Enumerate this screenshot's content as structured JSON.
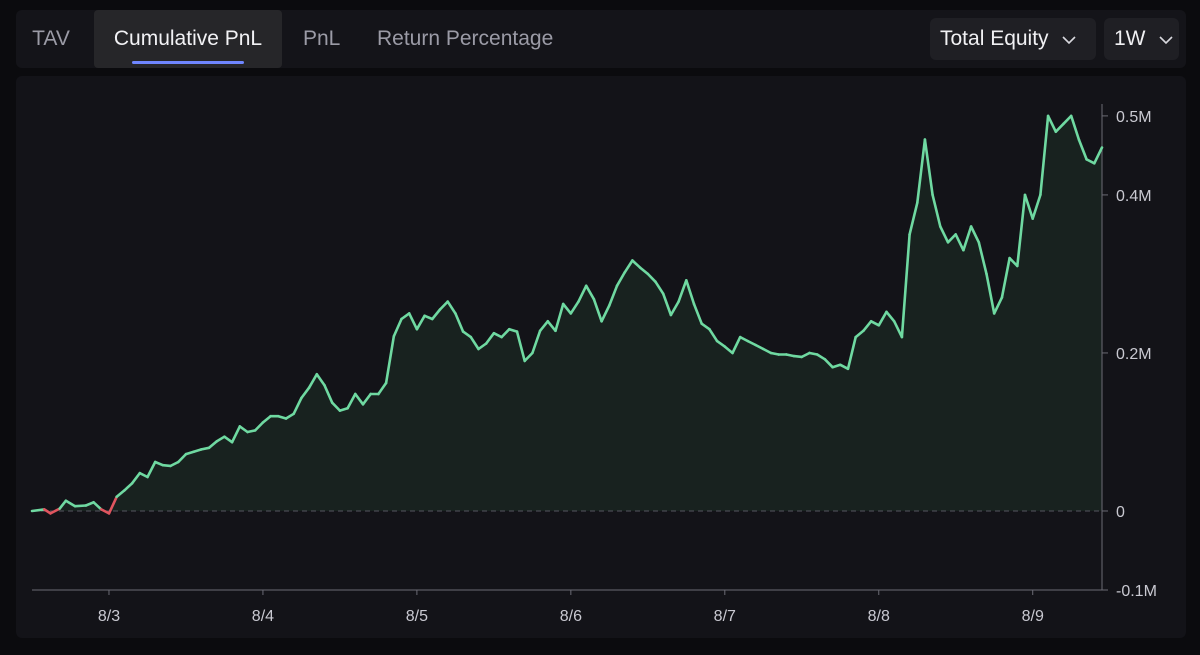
{
  "tabs": [
    {
      "label": "TAV",
      "active": false
    },
    {
      "label": "Cumulative PnL",
      "active": true
    },
    {
      "label": "PnL",
      "active": false
    },
    {
      "label": "Return Percentage",
      "active": false
    }
  ],
  "dropdowns": {
    "metric": {
      "value": "Total Equity",
      "icon": "chevron-down-icon"
    },
    "range": {
      "value": "1W",
      "icon": "chevron-down-icon"
    }
  },
  "colors": {
    "positive_line": "#6fd9a1",
    "negative_line": "#e0555f",
    "accent": "#6f86ff"
  },
  "chart_data": {
    "type": "area",
    "title": "",
    "xlabel": "",
    "ylabel": "",
    "ylim": [
      -0.1,
      0.51
    ],
    "y_unit": "M",
    "y_ticks": [
      {
        "value": 0.5,
        "label": "0.5M"
      },
      {
        "value": 0.4,
        "label": "0.4M"
      },
      {
        "value": 0.2,
        "label": "0.2M"
      },
      {
        "value": 0,
        "label": "0"
      },
      {
        "value": -0.1,
        "label": "-0.1M"
      }
    ],
    "xlim": [
      2.5,
      9.45
    ],
    "x_ticks": [
      {
        "value": 3,
        "label": "8/3"
      },
      {
        "value": 4,
        "label": "8/4"
      },
      {
        "value": 5,
        "label": "8/5"
      },
      {
        "value": 6,
        "label": "8/6"
      },
      {
        "value": 7,
        "label": "8/7"
      },
      {
        "value": 8,
        "label": "8/8"
      },
      {
        "value": 9,
        "label": "8/9"
      }
    ],
    "zero_line": "dashed",
    "grid": false,
    "legend": "none",
    "series": [
      {
        "x": [
          2.5,
          2.58,
          2.62,
          2.68,
          2.72,
          2.78,
          2.85,
          2.9,
          2.95,
          3.0,
          3.05,
          3.1,
          3.15,
          3.2,
          3.25,
          3.3,
          3.35,
          3.4,
          3.45,
          3.5,
          3.55,
          3.6,
          3.65,
          3.7,
          3.75,
          3.8,
          3.85,
          3.9,
          3.95,
          4.0,
          4.05,
          4.1,
          4.15,
          4.2,
          4.25,
          4.3,
          4.35,
          4.4,
          4.45,
          4.5,
          4.55,
          4.6,
          4.65,
          4.7,
          4.75,
          4.8,
          4.85,
          4.9,
          4.95,
          5.0,
          5.05,
          5.1,
          5.15,
          5.2,
          5.25,
          5.3,
          5.35,
          5.4,
          5.45,
          5.5,
          5.55,
          5.6,
          5.65,
          5.7,
          5.75,
          5.8,
          5.85,
          5.9,
          5.95,
          6.0,
          6.05,
          6.1,
          6.15,
          6.2,
          6.25,
          6.3,
          6.35,
          6.4,
          6.45,
          6.5,
          6.55,
          6.6,
          6.65,
          6.7,
          6.75,
          6.8,
          6.85,
          6.9,
          6.95,
          7.0,
          7.05,
          7.1,
          7.15,
          7.2,
          7.25,
          7.3,
          7.35,
          7.4,
          7.45,
          7.5,
          7.55,
          7.6,
          7.65,
          7.7,
          7.75,
          7.8,
          7.85,
          7.9,
          7.95,
          8.0,
          8.05,
          8.1,
          8.15,
          8.2,
          8.25,
          8.3,
          8.35,
          8.4,
          8.45,
          8.5,
          8.55,
          8.6,
          8.65,
          8.7,
          8.75,
          8.8,
          8.85,
          8.9,
          8.95,
          9.0,
          9.05,
          9.1,
          9.15,
          9.2,
          9.25,
          9.3,
          9.35,
          9.4,
          9.45
        ],
        "values": [
          0.0,
          0.002,
          -0.003,
          0.003,
          0.013,
          0.006,
          0.007,
          0.011,
          0.002,
          -0.003,
          0.018,
          0.026,
          0.035,
          0.048,
          0.043,
          0.062,
          0.058,
          0.057,
          0.062,
          0.072,
          0.075,
          0.078,
          0.08,
          0.088,
          0.094,
          0.087,
          0.107,
          0.1,
          0.102,
          0.112,
          0.12,
          0.12,
          0.117,
          0.123,
          0.143,
          0.156,
          0.173,
          0.159,
          0.137,
          0.127,
          0.13,
          0.148,
          0.135,
          0.148,
          0.148,
          0.162,
          0.221,
          0.243,
          0.25,
          0.23,
          0.247,
          0.243,
          0.255,
          0.265,
          0.25,
          0.227,
          0.22,
          0.205,
          0.212,
          0.225,
          0.22,
          0.23,
          0.227,
          0.19,
          0.2,
          0.228,
          0.24,
          0.228,
          0.262,
          0.25,
          0.265,
          0.285,
          0.268,
          0.24,
          0.26,
          0.285,
          0.302,
          0.317,
          0.308,
          0.3,
          0.29,
          0.275,
          0.248,
          0.265,
          0.292,
          0.262,
          0.237,
          0.23,
          0.215,
          0.208,
          0.2,
          0.22,
          0.215,
          0.21,
          0.205,
          0.2,
          0.198,
          0.198,
          0.196,
          0.195,
          0.2,
          0.198,
          0.192,
          0.182,
          0.185,
          0.18,
          0.22,
          0.228,
          0.24,
          0.235,
          0.252,
          0.24,
          0.22,
          0.35,
          0.39,
          0.47,
          0.4,
          0.36,
          0.34,
          0.35,
          0.33,
          0.36,
          0.34,
          0.3,
          0.25,
          0.27,
          0.32,
          0.31,
          0.4,
          0.37,
          0.4,
          0.5,
          0.48,
          0.49,
          0.5,
          0.47,
          0.445,
          0.44,
          0.46
        ]
      }
    ]
  }
}
